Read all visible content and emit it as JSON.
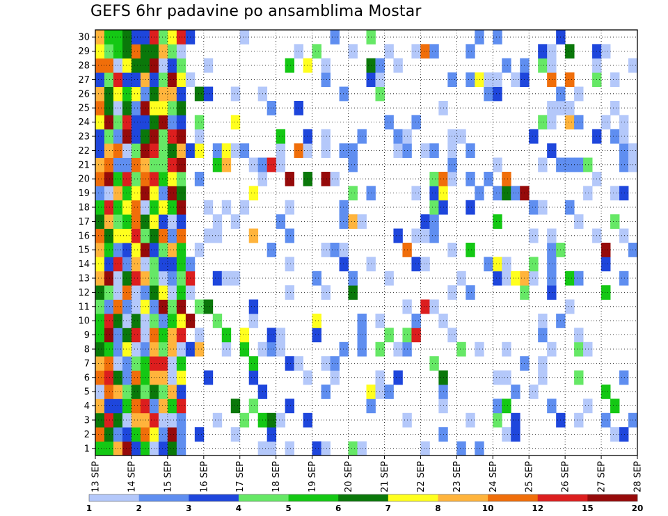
{
  "chart_data": {
    "type": "heatmap",
    "title": "GEFS 6hr padavine po ansamblima Mostar",
    "xlabel": "",
    "ylabel": "",
    "x_ticks": [
      "13 SEP",
      "14 SEP",
      "15 SEP",
      "16 SEP",
      "17 SEP",
      "18 SEP",
      "19 SEP",
      "20 SEP",
      "21 SEP",
      "22 SEP",
      "23 SEP",
      "24 SEP",
      "25 SEP",
      "26 SEP",
      "27 SEP",
      "28 SEP"
    ],
    "y_ticks": [
      "1",
      "2",
      "3",
      "4",
      "5",
      "6",
      "7",
      "8",
      "9",
      "10",
      "11",
      "12",
      "13",
      "14",
      "15",
      "16",
      "17",
      "18",
      "19",
      "20",
      "21",
      "22",
      "23",
      "24",
      "25",
      "26",
      "27",
      "28",
      "29",
      "30"
    ],
    "ylim": [
      1,
      30
    ],
    "grid": true,
    "legend_placement": "bottom",
    "colorbar": {
      "labels": [
        "1",
        "2",
        "3",
        "4",
        "5",
        "6",
        "7",
        "8",
        "10",
        "12",
        "15",
        "20"
      ],
      "colors": [
        "#b4c8fa",
        "#5f8ef0",
        "#1e46dc",
        "#66e866",
        "#14c814",
        "#0a780a",
        "#ffff1e",
        "#ffb43c",
        "#f06e0a",
        "#dc1e1e",
        "#960a0a"
      ]
    },
    "n_steps": 60,
    "dense_columns": 10,
    "dense_lead_cells": [
      0,
      1,
      0,
      0,
      0,
      0,
      0,
      0,
      0,
      0,
      0,
      0,
      0,
      0,
      0,
      0,
      0,
      0,
      0,
      0,
      0,
      0,
      0,
      0,
      0,
      0,
      0,
      0,
      0,
      0
    ],
    "sparse_density": 0.24,
    "seed": 20240913
  }
}
